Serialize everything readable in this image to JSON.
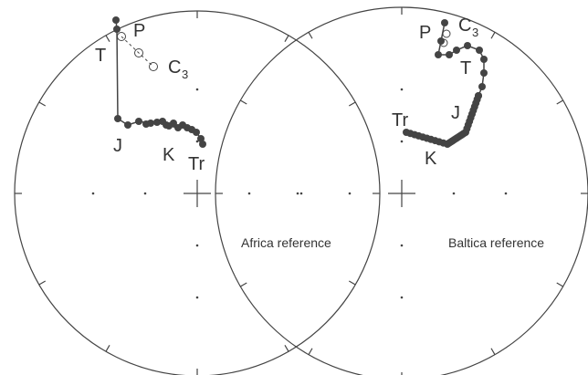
{
  "stereonets": [
    {
      "reference": "Africa reference",
      "labels": {
        "P": "P",
        "T": "T",
        "C": "C",
        "C_sub": "3",
        "J": "J",
        "K": "K",
        "Tr": "Tr"
      }
    },
    {
      "reference": "Baltica reference",
      "labels": {
        "P": "P",
        "T": "T",
        "C": "C",
        "C_sub": "3",
        "J": "J",
        "K": "K",
        "Tr": "Tr"
      }
    }
  ]
}
